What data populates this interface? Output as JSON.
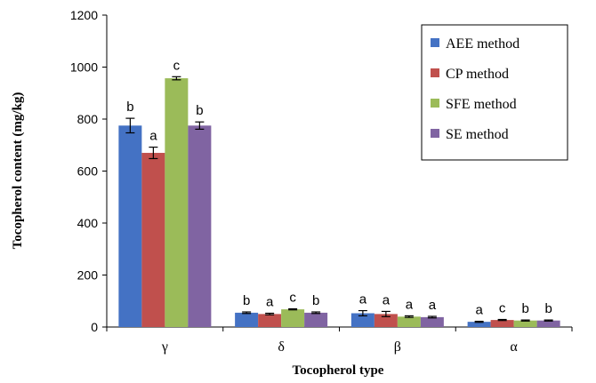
{
  "chart_data": {
    "type": "bar",
    "title": "",
    "xlabel": "Tocopherol  type",
    "ylabel": "Tocopherol  content (mg/kg)",
    "ylim": [
      0,
      1200
    ],
    "yticks": [
      "0",
      "200",
      "400",
      "600",
      "800",
      "1000",
      "1200"
    ],
    "categories": [
      "γ",
      "δ",
      "β",
      "α"
    ],
    "grid": false,
    "legend_position": "top-right",
    "series": [
      {
        "name": "AEE method",
        "color": "#4472C4",
        "values": [
          775,
          55,
          53,
          20
        ],
        "errors": [
          28,
          3,
          10,
          2
        ],
        "labels": [
          "b",
          "b",
          "a",
          "a"
        ]
      },
      {
        "name": "CP method",
        "color": "#C0504D",
        "values": [
          670,
          50,
          50,
          27
        ],
        "errors": [
          22,
          3,
          10,
          2
        ],
        "labels": [
          "a",
          "a",
          "a",
          "c"
        ]
      },
      {
        "name": "SFE method",
        "color": "#9BBB59",
        "values": [
          957,
          68,
          40,
          25
        ],
        "errors": [
          6,
          2,
          3,
          2
        ],
        "labels": [
          "c",
          "c",
          "a",
          "b"
        ]
      },
      {
        "name": "SE method",
        "color": "#8064A2",
        "values": [
          775,
          55,
          38,
          25
        ],
        "errors": [
          14,
          3,
          3,
          2
        ],
        "labels": [
          "b",
          "b",
          "a",
          "b"
        ]
      }
    ]
  }
}
